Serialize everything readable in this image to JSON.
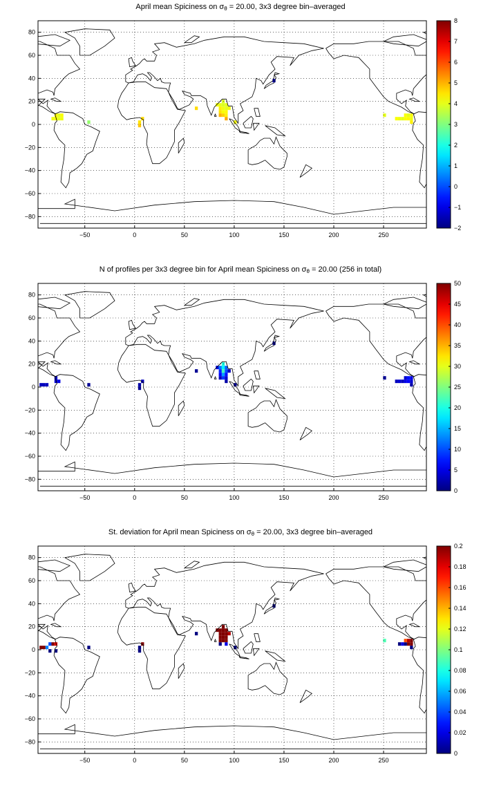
{
  "panels": [
    {
      "id": "mean",
      "title_pre": "April mean Spiciness on σ",
      "title_sub": "θ",
      "title_post": " = 20.00, 3x3 degree bin–averaged",
      "colorbar_ticks": [
        "8",
        "7",
        "6",
        "5",
        "4",
        "3",
        "2",
        "1",
        "0",
        "−1",
        "−2"
      ],
      "color_range": [
        -2,
        8
      ],
      "bins": [
        {
          "lon": -79,
          "lat": 5,
          "v": 4.2
        },
        {
          "lon": -76,
          "lat": 5,
          "v": 4.0
        },
        {
          "lon": -73,
          "lat": 5,
          "v": 4.1
        },
        {
          "lon": -79,
          "lat": 8,
          "v": 4.3
        },
        {
          "lon": -76,
          "lat": 8,
          "v": 4.0
        },
        {
          "lon": -73,
          "lat": 8,
          "v": 4.2
        },
        {
          "lon": -82,
          "lat": 5,
          "v": 4.1
        },
        {
          "lon": -46,
          "lat": 2,
          "v": 3.2
        },
        {
          "lon": 5,
          "lat": 2,
          "v": 4.5
        },
        {
          "lon": 8,
          "lat": 5,
          "v": 4.6
        },
        {
          "lon": 5,
          "lat": -1,
          "v": 4.8
        },
        {
          "lon": 62,
          "lat": 14,
          "v": 4.6
        },
        {
          "lon": 83,
          "lat": 17,
          "v": 4.1
        },
        {
          "lon": 86,
          "lat": 17,
          "v": 4.0
        },
        {
          "lon": 89,
          "lat": 17,
          "v": 3.9
        },
        {
          "lon": 86,
          "lat": 14,
          "v": 4.4
        },
        {
          "lon": 89,
          "lat": 14,
          "v": 4.1
        },
        {
          "lon": 92,
          "lat": 14,
          "v": 4.0
        },
        {
          "lon": 86,
          "lat": 11,
          "v": 4.5
        },
        {
          "lon": 89,
          "lat": 11,
          "v": 4.2
        },
        {
          "lon": 92,
          "lat": 11,
          "v": 4.3
        },
        {
          "lon": 86,
          "lat": 8,
          "v": 5.0
        },
        {
          "lon": 89,
          "lat": 8,
          "v": 4.7
        },
        {
          "lon": 92,
          "lat": 8,
          "v": 4.4
        },
        {
          "lon": 89,
          "lat": 20,
          "v": 3.9
        },
        {
          "lon": 92,
          "lat": 17,
          "v": 4.0
        },
        {
          "lon": 95,
          "lat": 14,
          "v": 4.1
        },
        {
          "lon": 92,
          "lat": 5,
          "v": 5.1
        },
        {
          "lon": 101,
          "lat": 2,
          "v": 4.2
        },
        {
          "lon": 140,
          "lat": 38,
          "v": -1.5
        },
        {
          "lon": 251,
          "lat": 8,
          "v": 4.0
        },
        {
          "lon": 263,
          "lat": 5,
          "v": 4.2
        },
        {
          "lon": 266,
          "lat": 5,
          "v": 4.1
        },
        {
          "lon": 269,
          "lat": 5,
          "v": 4.0
        },
        {
          "lon": 272,
          "lat": 5,
          "v": 4.2
        },
        {
          "lon": 275,
          "lat": 5,
          "v": 4.3
        },
        {
          "lon": 278,
          "lat": 5,
          "v": 4.1
        },
        {
          "lon": 272,
          "lat": 8,
          "v": 4.2
        },
        {
          "lon": 275,
          "lat": 8,
          "v": 4.0
        },
        {
          "lon": 278,
          "lat": 8,
          "v": 4.2
        },
        {
          "lon": 278,
          "lat": 2,
          "v": 4.4
        }
      ]
    },
    {
      "id": "count",
      "title_pre": "N of profiles per 3x3 degree bin for April mean Spiciness on σ",
      "title_sub": "θ",
      "title_post": " = 20.00 (256 in total)",
      "colorbar_ticks": [
        "50",
        "45",
        "40",
        "35",
        "30",
        "25",
        "20",
        "15",
        "10",
        "5",
        "0"
      ],
      "color_range": [
        0,
        50
      ],
      "bins": [
        {
          "lon": -94,
          "lat": 2,
          "v": 3
        },
        {
          "lon": -91,
          "lat": 2,
          "v": 3
        },
        {
          "lon": -88,
          "lat": 2,
          "v": 3
        },
        {
          "lon": -79,
          "lat": 5,
          "v": 4
        },
        {
          "lon": -76,
          "lat": 5,
          "v": 5
        },
        {
          "lon": -79,
          "lat": 8,
          "v": 3
        },
        {
          "lon": -46,
          "lat": 2,
          "v": 1
        },
        {
          "lon": 5,
          "lat": 2,
          "v": 2
        },
        {
          "lon": 8,
          "lat": 5,
          "v": 3
        },
        {
          "lon": 5,
          "lat": -1,
          "v": 1
        },
        {
          "lon": 62,
          "lat": 14,
          "v": 1
        },
        {
          "lon": 83,
          "lat": 17,
          "v": 5
        },
        {
          "lon": 86,
          "lat": 17,
          "v": 12
        },
        {
          "lon": 89,
          "lat": 17,
          "v": 18
        },
        {
          "lon": 86,
          "lat": 14,
          "v": 8
        },
        {
          "lon": 89,
          "lat": 14,
          "v": 22
        },
        {
          "lon": 92,
          "lat": 14,
          "v": 10
        },
        {
          "lon": 86,
          "lat": 11,
          "v": 6
        },
        {
          "lon": 89,
          "lat": 11,
          "v": 14
        },
        {
          "lon": 92,
          "lat": 11,
          "v": 7
        },
        {
          "lon": 86,
          "lat": 8,
          "v": 3
        },
        {
          "lon": 89,
          "lat": 8,
          "v": 9
        },
        {
          "lon": 92,
          "lat": 8,
          "v": 4
        },
        {
          "lon": 89,
          "lat": 20,
          "v": 20
        },
        {
          "lon": 92,
          "lat": 17,
          "v": 11
        },
        {
          "lon": 95,
          "lat": 14,
          "v": 3
        },
        {
          "lon": 92,
          "lat": 5,
          "v": 2
        },
        {
          "lon": 101,
          "lat": 2,
          "v": 1
        },
        {
          "lon": 140,
          "lat": 38,
          "v": 1
        },
        {
          "lon": 251,
          "lat": 8,
          "v": 1
        },
        {
          "lon": 263,
          "lat": 5,
          "v": 3
        },
        {
          "lon": 266,
          "lat": 5,
          "v": 4
        },
        {
          "lon": 269,
          "lat": 5,
          "v": 3
        },
        {
          "lon": 272,
          "lat": 5,
          "v": 5
        },
        {
          "lon": 275,
          "lat": 5,
          "v": 6
        },
        {
          "lon": 278,
          "lat": 5,
          "v": 4
        },
        {
          "lon": 272,
          "lat": 8,
          "v": 4
        },
        {
          "lon": 275,
          "lat": 8,
          "v": 7
        },
        {
          "lon": 278,
          "lat": 8,
          "v": 5
        },
        {
          "lon": 278,
          "lat": 2,
          "v": 2
        }
      ]
    },
    {
      "id": "stdev",
      "title_pre": "St. deviation for April mean Spiciness on σ",
      "title_sub": "θ",
      "title_post": " = 20.00, 3x3 degree bin–averaged",
      "colorbar_ticks": [
        "0.2",
        "0.18",
        "0.16",
        "0.14",
        "0.12",
        "0.1",
        "0.08",
        "0.06",
        "0.04",
        "0.02",
        "0"
      ],
      "color_range": [
        0,
        0.2
      ],
      "bins": [
        {
          "lon": -94,
          "lat": 2,
          "v": 0.2
        },
        {
          "lon": -91,
          "lat": 2,
          "v": 0.2
        },
        {
          "lon": -88,
          "lat": 2,
          "v": 0.05
        },
        {
          "lon": -85,
          "lat": 5,
          "v": 0.04
        },
        {
          "lon": -82,
          "lat": 5,
          "v": 0.2
        },
        {
          "lon": -79,
          "lat": 5,
          "v": 0.18
        },
        {
          "lon": -85,
          "lat": -1,
          "v": 0.0
        },
        {
          "lon": -79,
          "lat": -1,
          "v": 0.0
        },
        {
          "lon": -46,
          "lat": 2,
          "v": 0.0
        },
        {
          "lon": 8,
          "lat": 5,
          "v": 0.2
        },
        {
          "lon": 5,
          "lat": 2,
          "v": 0.0
        },
        {
          "lon": 5,
          "lat": -1,
          "v": 0.0
        },
        {
          "lon": 62,
          "lat": 14,
          "v": 0.0
        },
        {
          "lon": 83,
          "lat": 17,
          "v": 0.2
        },
        {
          "lon": 86,
          "lat": 17,
          "v": 0.2
        },
        {
          "lon": 89,
          "lat": 17,
          "v": 0.2
        },
        {
          "lon": 86,
          "lat": 14,
          "v": 0.2
        },
        {
          "lon": 89,
          "lat": 14,
          "v": 0.2
        },
        {
          "lon": 92,
          "lat": 14,
          "v": 0.2
        },
        {
          "lon": 86,
          "lat": 11,
          "v": 0.2
        },
        {
          "lon": 89,
          "lat": 11,
          "v": 0.2
        },
        {
          "lon": 92,
          "lat": 11,
          "v": 0.2
        },
        {
          "lon": 86,
          "lat": 8,
          "v": 0.2
        },
        {
          "lon": 89,
          "lat": 8,
          "v": 0.2
        },
        {
          "lon": 92,
          "lat": 8,
          "v": 0.2
        },
        {
          "lon": 89,
          "lat": 20,
          "v": 0.2
        },
        {
          "lon": 92,
          "lat": 17,
          "v": 0.2
        },
        {
          "lon": 95,
          "lat": 14,
          "v": 0.19
        },
        {
          "lon": 92,
          "lat": 5,
          "v": 0.02
        },
        {
          "lon": 86,
          "lat": 5,
          "v": 0.0
        },
        {
          "lon": 101,
          "lat": 2,
          "v": 0.0
        },
        {
          "lon": 140,
          "lat": 38,
          "v": 0.0
        },
        {
          "lon": 251,
          "lat": 8,
          "v": 0.09
        },
        {
          "lon": 266,
          "lat": 5,
          "v": 0.0
        },
        {
          "lon": 269,
          "lat": 5,
          "v": 0.02
        },
        {
          "lon": 272,
          "lat": 5,
          "v": 0.0
        },
        {
          "lon": 275,
          "lat": 5,
          "v": 0.2
        },
        {
          "lon": 278,
          "lat": 5,
          "v": 0.2
        },
        {
          "lon": 278,
          "lat": 8,
          "v": 0.2
        },
        {
          "lon": 275,
          "lat": 8,
          "v": 0.19
        },
        {
          "lon": 272,
          "lat": 8,
          "v": 0.16
        },
        {
          "lon": 278,
          "lat": 2,
          "v": 0.0
        }
      ]
    }
  ],
  "axes": {
    "x_ticks": [
      "−50",
      "0",
      "50",
      "100",
      "150",
      "200",
      "250"
    ],
    "x_values": [
      -50,
      0,
      50,
      100,
      150,
      200,
      250
    ],
    "y_ticks": [
      "80",
      "60",
      "40",
      "20",
      "0",
      "−20",
      "−40",
      "−60",
      "−80"
    ],
    "y_values": [
      80,
      60,
      40,
      20,
      0,
      -20,
      -40,
      -60,
      -80
    ],
    "xlim": [
      -97,
      293
    ],
    "ylim": [
      -90,
      90
    ]
  }
}
